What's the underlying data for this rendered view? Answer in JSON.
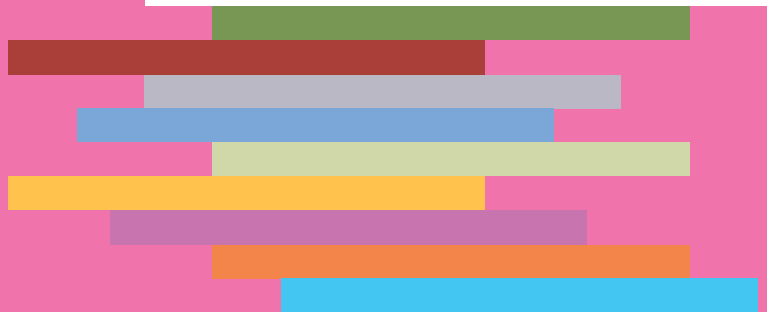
{
  "colors": {
    "background": "#F173AC",
    "top_strip": "#FFFFFF"
  },
  "bars": [
    {
      "color": "#789654"
    },
    {
      "color": "#AA3F39"
    },
    {
      "color": "#B9B8C4"
    },
    {
      "color": "#7BA6D8"
    },
    {
      "color": "#D0D7A8"
    },
    {
      "color": "#FFC34D"
    },
    {
      "color": "#C774AF"
    },
    {
      "color": "#F3844A"
    },
    {
      "color": "#43C7F2"
    }
  ]
}
